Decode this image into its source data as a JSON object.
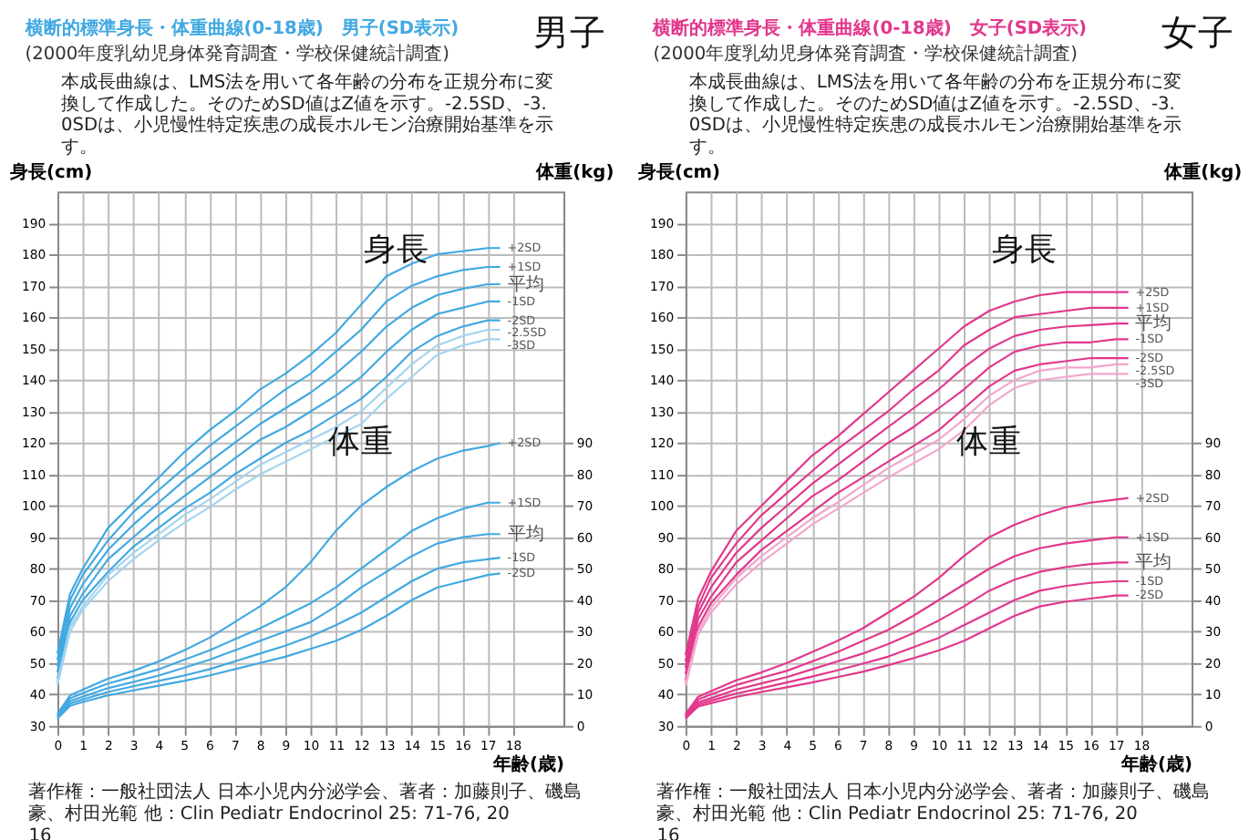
{
  "chart_data": [
    {
      "type": "line",
      "title": "横断的標準身長・体重曲線(0-18歳)　男子(SD表示)",
      "subtitle": "(2000年度乳幼児身体発育調査・学校保健統計調査)",
      "xlabel": "年齢(歳)",
      "ylabel": "身長(cm)",
      "y2label": "体重(kg)",
      "x": [
        0,
        0.5,
        1,
        2,
        3,
        4,
        5,
        6,
        7,
        8,
        9,
        10,
        11,
        12,
        13,
        14,
        15,
        16,
        17,
        17.5
      ],
      "xlim": [
        0,
        20
      ],
      "xticks": [
        0,
        1,
        2,
        3,
        4,
        5,
        6,
        7,
        8,
        9,
        10,
        11,
        12,
        13,
        14,
        15,
        16,
        17,
        18
      ],
      "ylim": [
        30,
        200
      ],
      "yticks": [
        30,
        40,
        50,
        60,
        70,
        80,
        90,
        100,
        110,
        120,
        130,
        140,
        150,
        160,
        170,
        180,
        190
      ],
      "y2lim": [
        0,
        170
      ],
      "y2ticks": [
        0,
        10,
        20,
        30,
        40,
        50,
        60,
        70,
        80,
        90
      ],
      "grid": true,
      "series": [
        {
          "name": "+2SD",
          "color": "#41a9e1",
          "values": [
            53,
            72,
            80,
            93,
            101,
            109,
            117,
            124,
            130,
            137,
            142,
            148,
            155,
            164,
            173,
            177,
            180,
            181,
            182,
            182
          ]
        },
        {
          "name": "+1SD",
          "color": "#41a9e1",
          "values": [
            51,
            70,
            78,
            89,
            98,
            105,
            112,
            119,
            125,
            131,
            137,
            142,
            149,
            156,
            165,
            170,
            173,
            175,
            176,
            176
          ]
        },
        {
          "name": "平均",
          "color": "#41a9e1",
          "values": [
            49,
            67.5,
            75,
            86,
            94,
            101,
            108,
            114,
            120,
            126,
            131,
            136,
            142,
            149,
            157,
            163,
            167,
            169,
            170.5,
            170.5
          ]
        },
        {
          "name": "-1SD",
          "color": "#41a9e1",
          "values": [
            47,
            65,
            72,
            83,
            90,
            97,
            103,
            109,
            115,
            121,
            125,
            130,
            135,
            141,
            149,
            156,
            161,
            163,
            165,
            165
          ]
        },
        {
          "name": "-2SD",
          "color": "#41a9e1",
          "values": [
            45,
            63,
            70,
            79,
            87,
            93,
            99,
            104,
            110,
            115,
            120,
            124,
            129,
            134,
            141,
            149,
            154,
            157,
            159,
            159
          ]
        },
        {
          "name": "-2.5SD",
          "color": "#a3d4ee",
          "values": [
            44,
            61.5,
            68,
            78,
            85,
            91,
            97,
            102,
            107.5,
            113,
            117,
            121,
            125,
            130,
            137.5,
            145,
            151,
            154,
            156,
            156
          ]
        },
        {
          "name": "-3SD",
          "color": "#a3d4ee",
          "values": [
            43,
            60,
            67,
            76,
            83,
            89,
            94.5,
            99.5,
            105,
            110,
            114,
            118,
            122,
            126,
            134,
            141,
            148,
            151,
            153,
            153
          ]
        },
        {
          "name": "+2SD",
          "color": "#41a9e1",
          "axis": "y2",
          "values": [
            3.8,
            9.7,
            11.5,
            15,
            17.5,
            20.5,
            24,
            28,
            33,
            38,
            44,
            52,
            62,
            70,
            76,
            81,
            85,
            87.5,
            89,
            90
          ]
        },
        {
          "name": "+1SD",
          "color": "#41a9e1",
          "axis": "y2",
          "values": [
            3.4,
            8.8,
            10.4,
            13.5,
            15.7,
            18,
            21,
            24,
            27.5,
            31,
            35,
            39,
            44,
            50,
            56,
            62,
            66,
            69,
            71,
            71
          ]
        },
        {
          "name": "平均",
          "color": "#41a9e1",
          "axis": "y2",
          "values": [
            3.0,
            7.9,
            9.3,
            12,
            14,
            16,
            18.5,
            21,
            24,
            27,
            30,
            33,
            38,
            44,
            49,
            54,
            58,
            60,
            61,
            61
          ]
        },
        {
          "name": "-1SD",
          "color": "#41a9e1",
          "axis": "y2",
          "values": [
            2.7,
            7.1,
            8.4,
            10.8,
            12.6,
            14.3,
            16,
            18,
            20.5,
            23,
            25.5,
            28.5,
            32,
            36,
            41,
            46,
            50,
            52,
            53,
            53.5
          ]
        },
        {
          "name": "-2SD",
          "color": "#41a9e1",
          "axis": "y2",
          "values": [
            2.3,
            6.4,
            7.6,
            9.7,
            11.3,
            12.8,
            14.3,
            16,
            18,
            20,
            22,
            24.5,
            27,
            30.5,
            35,
            40,
            44,
            46,
            48,
            48.5
          ]
        }
      ],
      "annotations": [
        "男子",
        "身長",
        "体重",
        "本成長曲線は、LMS法を用いて各年齢の分布を正規分布に変換して作成した。そのためSD値はZ値を示す。-2.5SD、-3.0SDは、小児慢性特定疾患の成長ホルモン治療開始基準を示す。",
        "著作権：一般社団法人 日本小児内分泌学会、著者：加藤則子、磯島豪、村田光範 他：Clin Pediatr Endocrinol 25: 71-76, 2016"
      ]
    },
    {
      "type": "line",
      "title": "横断的標準身長・体重曲線(0-18歳)　女子(SD表示)",
      "subtitle": "(2000年度乳幼児身体発育調査・学校保健統計調査)",
      "xlabel": "年齢(歳)",
      "ylabel": "身長(cm)",
      "y2label": "体重(kg)",
      "x": [
        0,
        0.5,
        1,
        2,
        3,
        4,
        5,
        6,
        7,
        8,
        9,
        10,
        11,
        12,
        13,
        14,
        15,
        16,
        17,
        17.5
      ],
      "xlim": [
        0,
        20
      ],
      "xticks": [
        0,
        1,
        2,
        3,
        4,
        5,
        6,
        7,
        8,
        9,
        10,
        11,
        12,
        13,
        14,
        15,
        16,
        17,
        18
      ],
      "ylim": [
        30,
        200
      ],
      "yticks": [
        30,
        40,
        50,
        60,
        70,
        80,
        90,
        100,
        110,
        120,
        130,
        140,
        150,
        160,
        170,
        180,
        190
      ],
      "y2lim": [
        0,
        170
      ],
      "y2ticks": [
        0,
        10,
        20,
        30,
        40,
        50,
        60,
        70,
        80,
        90
      ],
      "grid": true,
      "series": [
        {
          "name": "+2SD",
          "color": "#e2378c",
          "values": [
            52.5,
            70.5,
            79,
            92,
            100,
            108,
            116,
            122,
            129,
            136,
            143,
            150,
            157,
            162,
            165,
            167,
            168,
            168,
            168,
            168
          ]
        },
        {
          "name": "+1SD",
          "color": "#e2378c",
          "values": [
            50.5,
            68,
            77,
            88,
            97,
            104,
            111,
            118,
            124,
            130,
            137,
            143,
            151,
            156,
            160,
            161,
            162,
            163,
            163,
            163
          ]
        },
        {
          "name": "平均",
          "color": "#e2378c",
          "values": [
            48.5,
            66,
            74,
            85,
            93,
            100,
            107,
            113,
            119,
            125,
            131,
            137,
            144,
            150,
            154,
            156,
            157,
            157.5,
            158,
            158
          ]
        },
        {
          "name": "-1SD",
          "color": "#e2378c",
          "values": [
            46.5,
            64,
            71,
            82,
            89,
            96,
            103,
            108,
            114,
            120,
            125,
            131,
            137,
            144,
            149,
            151,
            152,
            152,
            153,
            153
          ]
        },
        {
          "name": "-2SD",
          "color": "#e2378c",
          "values": [
            44.5,
            61.5,
            69,
            78,
            86,
            92,
            98,
            104,
            109,
            114,
            119,
            124,
            131,
            138,
            143,
            145,
            146,
            147,
            147,
            147
          ]
        },
        {
          "name": "-2.5SD",
          "color": "#f2a6cb",
          "values": [
            43.5,
            60,
            67.5,
            77,
            84,
            90,
            96,
            101,
            106.5,
            112,
            116.5,
            121,
            127.5,
            135,
            140,
            143,
            144,
            144,
            145,
            145
          ]
        },
        {
          "name": "-3SD",
          "color": "#f2a6cb",
          "values": [
            42.5,
            59,
            66,
            75,
            82,
            88,
            94,
            99,
            104,
            109,
            113.5,
            118,
            124,
            132,
            137.5,
            140,
            141,
            142,
            142,
            142
          ]
        },
        {
          "name": "+2SD",
          "color": "#e2378c",
          "axis": "y2",
          "values": [
            3.7,
            9.3,
            11,
            14.5,
            17,
            20,
            23.5,
            27,
            31,
            36,
            41,
            47,
            54,
            60,
            64,
            67,
            69.5,
            71,
            72,
            72.5
          ]
        },
        {
          "name": "+1SD",
          "color": "#e2378c",
          "axis": "y2",
          "values": [
            3.3,
            8.4,
            10,
            13,
            15.3,
            17.5,
            20.5,
            23.5,
            27,
            30.5,
            35,
            40,
            45,
            50,
            54,
            56.5,
            58,
            59,
            60,
            60
          ]
        },
        {
          "name": "平均",
          "color": "#e2378c",
          "axis": "y2",
          "values": [
            3.0,
            7.5,
            8.8,
            11.5,
            13.5,
            15.5,
            18,
            20.5,
            23,
            26,
            29.5,
            33.5,
            38,
            43,
            46.5,
            49,
            50.5,
            51.5,
            52,
            52
          ]
        },
        {
          "name": "-1SD",
          "color": "#e2378c",
          "axis": "y2",
          "values": [
            2.6,
            6.8,
            8,
            10.3,
            12,
            13.8,
            15.7,
            17.7,
            19.8,
            22,
            25,
            28,
            32,
            36,
            40,
            43,
            44.5,
            45.5,
            46,
            46
          ]
        },
        {
          "name": "-2SD",
          "color": "#e2378c",
          "axis": "y2",
          "values": [
            2.3,
            6.2,
            7.2,
            9.2,
            10.8,
            12.3,
            13.8,
            15.5,
            17.2,
            19.3,
            21.5,
            24,
            27,
            31,
            35,
            38,
            39.5,
            40.5,
            41.5,
            41.5
          ]
        }
      ],
      "annotations": [
        "女子",
        "身長",
        "体重",
        "本成長曲線は、LMS法を用いて各年齢の分布を正規分布に変換して作成した。そのためSD値はZ値を示す。-2.5SD、-3.0SDは、小児慢性特定疾患の成長ホルモン治療開始基準を示す。",
        "著作権：一般社団法人 日本小児内分泌学会、著者：加藤則子、磯島豪、村田光範 他：Clin Pediatr Endocrinol 25: 71-76, 2016"
      ]
    }
  ]
}
